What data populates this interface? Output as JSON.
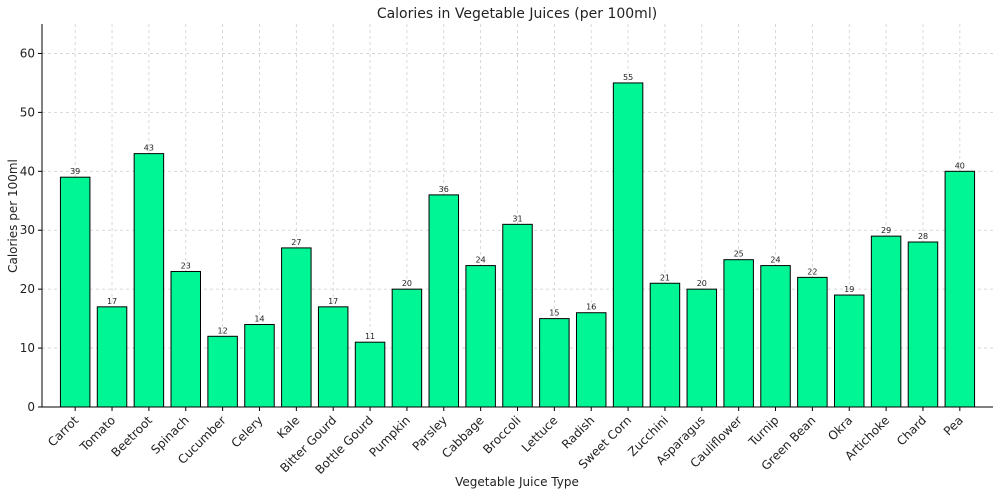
{
  "chart_data": {
    "type": "bar",
    "title": "Calories in Vegetable Juices (per 100ml)",
    "xlabel": "Vegetable Juice Type",
    "ylabel": "Calories per 100ml",
    "ylim": [
      0,
      65
    ],
    "yticks": [
      0,
      10,
      20,
      30,
      40,
      50,
      60
    ],
    "grid": true,
    "bar_color": "#00F595",
    "bar_edge_color": "#000000",
    "categories": [
      "Carrot",
      "Tomato",
      "Beetroot",
      "Spinach",
      "Cucumber",
      "Celery",
      "Kale",
      "Bitter Gourd",
      "Bottle Gourd",
      "Pumpkin",
      "Parsley",
      "Cabbage",
      "Broccoli",
      "Lettuce",
      "Radish",
      "Sweet Corn",
      "Zucchini",
      "Asparagus",
      "Cauliflower",
      "Turnip",
      "Green Bean",
      "Okra",
      "Artichoke",
      "Chard",
      "Pea"
    ],
    "values": [
      39,
      17,
      43,
      23,
      12,
      14,
      27,
      17,
      11,
      20,
      36,
      24,
      31,
      15,
      16,
      55,
      21,
      20,
      25,
      24,
      22,
      19,
      29,
      28,
      40
    ]
  }
}
